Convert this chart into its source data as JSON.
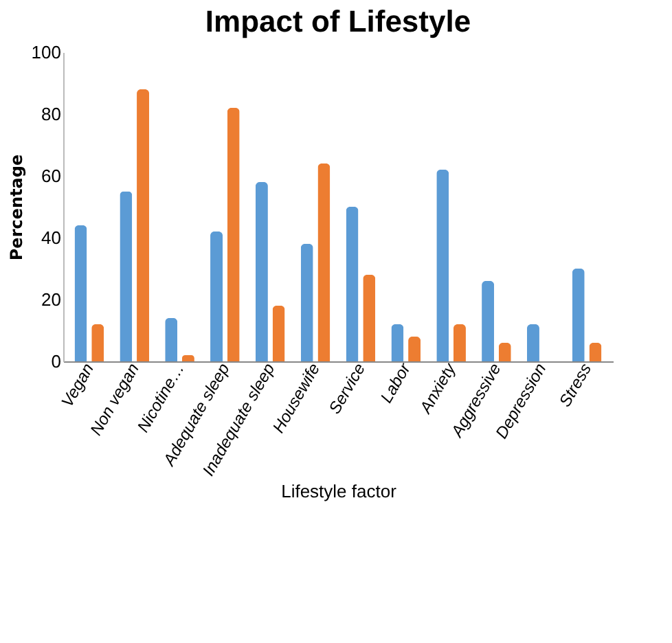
{
  "chart_data": {
    "type": "bar",
    "title": "Impact of Lifestyle",
    "xlabel": "Lifestyle factor",
    "ylabel": "Percentage",
    "categories": [
      "Vegan",
      "Non vegan",
      "Nicotine…",
      "Adequate sleep",
      "Inadequate sleep",
      "Housewife",
      "Service",
      "Labor",
      "Anxiety",
      "Aggressive",
      "Depression",
      "Stress"
    ],
    "series": [
      {
        "color": "#5b9bd5",
        "values": [
          44,
          55,
          14,
          42,
          58,
          38,
          50,
          12,
          62,
          26,
          12,
          30
        ]
      },
      {
        "color": "#ed7d31",
        "values": [
          12,
          88,
          2,
          82,
          18,
          64,
          28,
          8,
          12,
          6,
          0,
          6
        ]
      }
    ],
    "ylim": [
      0,
      100
    ],
    "yticks": [
      0,
      20,
      40,
      60,
      80,
      100
    ],
    "grid": false,
    "legend": false
  }
}
